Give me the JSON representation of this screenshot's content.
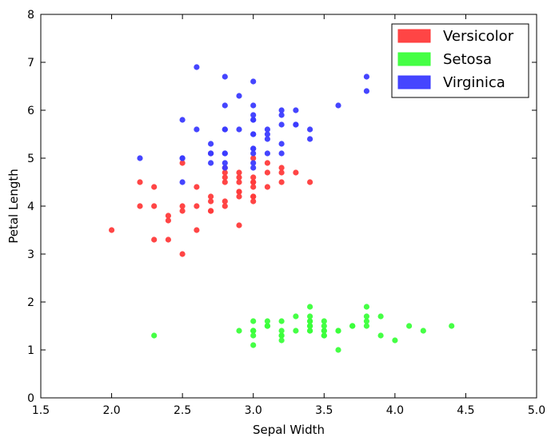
{
  "chart_data": {
    "type": "scatter",
    "xlabel": "Sepal Width",
    "ylabel": "Petal Length",
    "xlim": [
      1.5,
      5.0
    ],
    "ylim": [
      0,
      8
    ],
    "xticks": [
      "1.5",
      "2.0",
      "2.5",
      "3.0",
      "3.5",
      "4.0",
      "4.5",
      "5.0"
    ],
    "yticks": [
      "0",
      "1",
      "2",
      "3",
      "4",
      "5",
      "6",
      "7",
      "8"
    ],
    "grid": false,
    "legend_position": "top-right",
    "series": [
      {
        "name": "Versicolor",
        "color": "#ff3b3b",
        "points": [
          [
            3.2,
            4.7
          ],
          [
            3.2,
            4.5
          ],
          [
            3.1,
            4.9
          ],
          [
            2.3,
            4.0
          ],
          [
            2.8,
            4.6
          ],
          [
            2.8,
            4.5
          ],
          [
            3.3,
            4.7
          ],
          [
            2.4,
            3.3
          ],
          [
            2.9,
            4.6
          ],
          [
            2.7,
            3.9
          ],
          [
            2.0,
            3.5
          ],
          [
            3.0,
            4.2
          ],
          [
            2.2,
            4.0
          ],
          [
            2.9,
            4.7
          ],
          [
            2.9,
            3.6
          ],
          [
            3.1,
            4.4
          ],
          [
            3.0,
            4.5
          ],
          [
            2.7,
            4.1
          ],
          [
            2.2,
            4.5
          ],
          [
            2.5,
            3.9
          ],
          [
            3.2,
            4.8
          ],
          [
            2.8,
            4.0
          ],
          [
            2.5,
            4.9
          ],
          [
            2.8,
            4.7
          ],
          [
            2.9,
            4.3
          ],
          [
            3.0,
            4.4
          ],
          [
            2.8,
            4.8
          ],
          [
            3.0,
            5.0
          ],
          [
            2.9,
            4.5
          ],
          [
            2.6,
            3.5
          ],
          [
            2.4,
            3.8
          ],
          [
            2.4,
            3.7
          ],
          [
            2.7,
            3.9
          ],
          [
            2.7,
            5.1
          ],
          [
            3.0,
            4.5
          ],
          [
            3.4,
            4.5
          ],
          [
            3.1,
            4.7
          ],
          [
            2.3,
            4.4
          ],
          [
            3.0,
            4.1
          ],
          [
            2.5,
            4.0
          ],
          [
            2.6,
            4.4
          ],
          [
            3.0,
            4.6
          ],
          [
            2.6,
            4.0
          ],
          [
            2.3,
            3.3
          ],
          [
            2.7,
            4.2
          ],
          [
            3.0,
            4.2
          ],
          [
            2.9,
            4.2
          ],
          [
            2.9,
            4.3
          ],
          [
            2.5,
            3.0
          ],
          [
            2.8,
            4.1
          ]
        ]
      },
      {
        "name": "Setosa",
        "color": "#3bff3b",
        "points": [
          [
            3.5,
            1.4
          ],
          [
            3.0,
            1.4
          ],
          [
            3.2,
            1.3
          ],
          [
            3.1,
            1.5
          ],
          [
            3.6,
            1.4
          ],
          [
            3.9,
            1.7
          ],
          [
            3.4,
            1.4
          ],
          [
            3.4,
            1.5
          ],
          [
            2.9,
            1.4
          ],
          [
            3.1,
            1.5
          ],
          [
            3.7,
            1.5
          ],
          [
            3.4,
            1.6
          ],
          [
            3.0,
            1.4
          ],
          [
            3.0,
            1.1
          ],
          [
            4.0,
            1.2
          ],
          [
            4.4,
            1.5
          ],
          [
            3.9,
            1.3
          ],
          [
            3.5,
            1.4
          ],
          [
            3.8,
            1.7
          ],
          [
            3.8,
            1.5
          ],
          [
            3.4,
            1.7
          ],
          [
            3.7,
            1.5
          ],
          [
            3.6,
            1.0
          ],
          [
            3.3,
            1.7
          ],
          [
            3.4,
            1.9
          ],
          [
            3.0,
            1.6
          ],
          [
            3.4,
            1.6
          ],
          [
            3.5,
            1.5
          ],
          [
            3.4,
            1.4
          ],
          [
            3.2,
            1.6
          ],
          [
            3.1,
            1.6
          ],
          [
            3.4,
            1.5
          ],
          [
            4.1,
            1.5
          ],
          [
            4.2,
            1.4
          ],
          [
            3.1,
            1.5
          ],
          [
            3.2,
            1.2
          ],
          [
            3.5,
            1.3
          ],
          [
            3.6,
            1.4
          ],
          [
            3.0,
            1.3
          ],
          [
            3.4,
            1.5
          ],
          [
            3.5,
            1.3
          ],
          [
            2.3,
            1.3
          ],
          [
            3.2,
            1.3
          ],
          [
            3.5,
            1.6
          ],
          [
            3.8,
            1.9
          ],
          [
            3.0,
            1.4
          ],
          [
            3.8,
            1.6
          ],
          [
            3.2,
            1.4
          ],
          [
            3.7,
            1.5
          ],
          [
            3.3,
            1.4
          ]
        ]
      },
      {
        "name": "Virginica",
        "color": "#3b3bff",
        "points": [
          [
            3.3,
            6.0
          ],
          [
            2.7,
            5.1
          ],
          [
            3.0,
            5.9
          ],
          [
            2.9,
            5.6
          ],
          [
            3.0,
            5.8
          ],
          [
            3.0,
            6.6
          ],
          [
            2.5,
            4.5
          ],
          [
            2.9,
            6.3
          ],
          [
            2.5,
            5.8
          ],
          [
            3.6,
            6.1
          ],
          [
            3.2,
            5.1
          ],
          [
            2.7,
            5.3
          ],
          [
            3.0,
            5.5
          ],
          [
            2.5,
            5.0
          ],
          [
            2.8,
            5.1
          ],
          [
            3.2,
            5.3
          ],
          [
            3.0,
            5.5
          ],
          [
            3.8,
            6.7
          ],
          [
            2.6,
            6.9
          ],
          [
            2.2,
            5.0
          ],
          [
            3.2,
            5.7
          ],
          [
            2.8,
            4.9
          ],
          [
            2.8,
            6.7
          ],
          [
            2.7,
            4.9
          ],
          [
            3.3,
            5.7
          ],
          [
            3.2,
            6.0
          ],
          [
            2.8,
            4.8
          ],
          [
            3.0,
            4.9
          ],
          [
            2.8,
            5.6
          ],
          [
            3.0,
            5.8
          ],
          [
            2.8,
            6.1
          ],
          [
            3.8,
            6.4
          ],
          [
            2.8,
            5.6
          ],
          [
            2.8,
            5.1
          ],
          [
            2.6,
            5.6
          ],
          [
            3.0,
            6.1
          ],
          [
            3.4,
            5.6
          ],
          [
            3.1,
            5.5
          ],
          [
            3.0,
            4.8
          ],
          [
            3.1,
            5.4
          ],
          [
            3.1,
            5.6
          ],
          [
            3.1,
            5.1
          ],
          [
            2.7,
            5.1
          ],
          [
            3.2,
            5.9
          ],
          [
            3.3,
            5.7
          ],
          [
            3.0,
            5.2
          ],
          [
            2.5,
            5.0
          ],
          [
            3.0,
            5.2
          ],
          [
            3.4,
            5.4
          ],
          [
            3.0,
            5.1
          ]
        ]
      }
    ]
  }
}
